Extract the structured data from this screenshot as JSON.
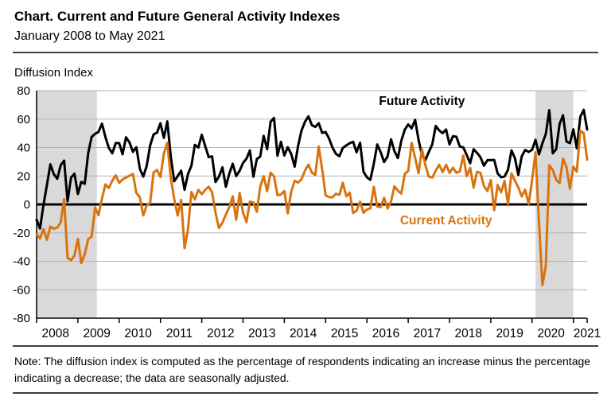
{
  "header": {
    "title": "Chart. Current and Future General Activity Indexes",
    "subtitle": "January 2008 to May 2021"
  },
  "chart": {
    "axis_unit_label": "Diffusion Index"
  },
  "note": {
    "text": "Note: The diffusion index is computed as the percentage of respondents indicating an increase minus the percentage indicating a decrease; the data are seasonally adjusted."
  },
  "chart_data": {
    "type": "line",
    "title": "Current and Future General Activity Indexes",
    "subtitle": "January 2008 to May 2021",
    "ylabel": "Diffusion Index",
    "xlabel": "",
    "frequency": "monthly",
    "x_start": "2008-01",
    "x_end": "2021-05",
    "ylim": [
      -80,
      80
    ],
    "ytick_step": 20,
    "grid_on": true,
    "legend_position": "inline-annotations",
    "year_labels": [
      "2008",
      "2009",
      "2010",
      "2011",
      "2012",
      "2013",
      "2014",
      "2015",
      "2016",
      "2017",
      "2018",
      "2019",
      "2020",
      "2021"
    ],
    "colors": {
      "future": "#000000",
      "current": "#D9730F",
      "band": "#D9D9D9",
      "grid": "#B3B3B3",
      "zero_line": "#000000"
    },
    "recession_bands": [
      {
        "start_index": 0,
        "end_index": 17.5
      },
      {
        "start_index": 145,
        "end_index": 156
      }
    ],
    "annotations": [
      {
        "text": "Future Activity",
        "x_index": 112,
        "y": 70,
        "color": "#000000"
      },
      {
        "text": "Current Activity",
        "x_index": 119,
        "y": -14,
        "color": "#D9730F"
      }
    ],
    "series": [
      {
        "name": "Future Activity",
        "color": "#000000",
        "stroke_width": 3,
        "values": [
          -10.8,
          -16.9,
          -0.5,
          13.7,
          28.2,
          21.3,
          18.0,
          27.6,
          30.8,
          2.2,
          18.9,
          21.6,
          7.4,
          15.9,
          14.5,
          36.2,
          47.5,
          49.7,
          51.0,
          56.8,
          47.4,
          39.8,
          36.0,
          43.2,
          43.1,
          35.3,
          47.2,
          43.5,
          37.0,
          40.2,
          25.0,
          19.6,
          27.1,
          41.4,
          49.3,
          50.5,
          57.1,
          46.8,
          58.4,
          33.6,
          16.3,
          19.9,
          23.7,
          10.3,
          21.4,
          27.2,
          41.9,
          40.0,
          49.0,
          41.1,
          33.3,
          33.8,
          15.8,
          19.5,
          26.1,
          12.5,
          21.6,
          28.6,
          20.0,
          23.7,
          29.2,
          32.1,
          38.0,
          19.5,
          31.9,
          33.7,
          48.2,
          38.9,
          58.2,
          60.8,
          34.3,
          44.0,
          34.4,
          40.2,
          35.4,
          26.6,
          41.3,
          52.0,
          58.1,
          62.0,
          55.8,
          54.5,
          57.1,
          50.3,
          50.9,
          46.4,
          40.0,
          35.5,
          33.9,
          39.7,
          41.5,
          43.1,
          44.0,
          36.7,
          43.4,
          23.0,
          19.1,
          17.3,
          28.8,
          42.2,
          36.8,
          29.8,
          33.7,
          45.8,
          37.5,
          32.6,
          44.7,
          52.6,
          56.3,
          53.5,
          59.5,
          45.4,
          34.8,
          31.3,
          36.9,
          42.3,
          55.2,
          52.1,
          50.1,
          52.7,
          42.2,
          48.0,
          47.6,
          40.7,
          40.1,
          34.8,
          29.0,
          38.8,
          36.3,
          33.2,
          27.2,
          31.1,
          31.2,
          31.3,
          21.8,
          19.1,
          19.7,
          24.3,
          38.0,
          32.6,
          20.8,
          33.8,
          38.4,
          36.9,
          38.4,
          45.4,
          35.2,
          43.0,
          49.7,
          66.3,
          36.0,
          38.8,
          56.6,
          62.7,
          44.3,
          43.1,
          52.8,
          39.5,
          61.6,
          66.6,
          52.7
        ]
      },
      {
        "name": "Current Activity",
        "color": "#D9730F",
        "stroke_width": 3,
        "values": [
          -20.9,
          -24.0,
          -17.4,
          -24.9,
          -15.6,
          -17.1,
          -16.3,
          -12.7,
          3.8,
          -37.5,
          -39.3,
          -36.1,
          -24.3,
          -41.3,
          -35.0,
          -24.4,
          -22.6,
          -2.2,
          -7.5,
          4.2,
          14.1,
          11.5,
          16.7,
          20.4,
          15.2,
          17.6,
          18.9,
          20.2,
          21.4,
          8.0,
          5.1,
          -7.7,
          -0.7,
          1.0,
          22.5,
          24.3,
          19.3,
          35.9,
          43.4,
          18.5,
          3.9,
          -7.7,
          3.2,
          -30.7,
          -17.5,
          8.7,
          3.6,
          10.3,
          7.3,
          10.2,
          12.5,
          8.5,
          -5.8,
          -16.6,
          -12.9,
          -7.1,
          -1.9,
          5.7,
          -10.7,
          8.1,
          -5.8,
          -12.5,
          2.0,
          1.3,
          -5.2,
          12.5,
          19.8,
          9.3,
          22.3,
          19.8,
          6.5,
          7.0,
          9.4,
          -6.3,
          9.0,
          16.6,
          15.4,
          17.8,
          23.9,
          28.0,
          22.5,
          20.7,
          40.8,
          24.5,
          6.3,
          5.2,
          5.0,
          7.5,
          6.7,
          15.2,
          5.7,
          8.3,
          -6.0,
          -4.5,
          1.9,
          -5.9,
          -3.5,
          -2.8,
          12.4,
          -1.6,
          -1.8,
          4.7,
          -2.9,
          2.0,
          12.8,
          9.7,
          7.6,
          21.5,
          23.6,
          43.3,
          32.8,
          22.0,
          38.8,
          27.6,
          19.5,
          18.9,
          23.8,
          27.9,
          22.7,
          27.9,
          22.2,
          25.8,
          22.3,
          23.2,
          34.4,
          19.9,
          25.7,
          11.9,
          22.9,
          22.2,
          12.9,
          9.4,
          17.0,
          -4.1,
          13.7,
          8.5,
          16.6,
          0.3,
          21.8,
          16.8,
          12.0,
          5.6,
          10.4,
          0.3,
          17.0,
          36.7,
          -12.7,
          -56.6,
          -43.1,
          27.5,
          24.1,
          17.2,
          15.0,
          32.3,
          26.3,
          11.1,
          26.5,
          23.1,
          51.8,
          50.2,
          31.5
        ]
      }
    ]
  }
}
